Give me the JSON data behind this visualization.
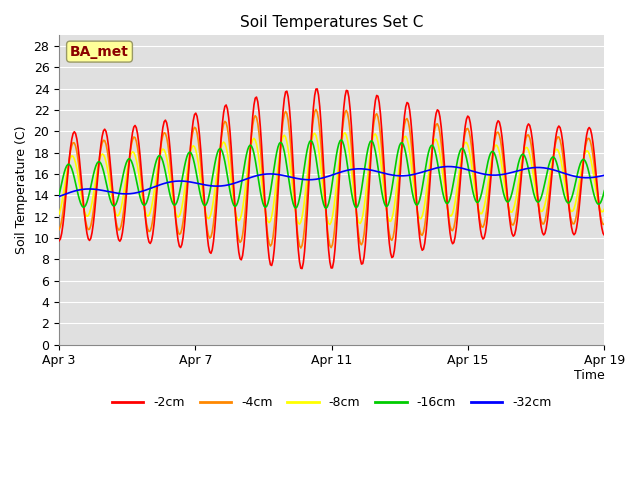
{
  "title": "Soil Temperatures Set C",
  "ylabel": "Soil Temperature (C)",
  "ylim": [
    0,
    29
  ],
  "yticks": [
    0,
    2,
    4,
    6,
    8,
    10,
    12,
    14,
    16,
    18,
    20,
    22,
    24,
    26,
    28
  ],
  "xtick_labels": [
    "Apr 3",
    "Apr 7",
    "Apr 11",
    "Apr 15",
    "Apr 19"
  ],
  "xtick_positions": [
    0,
    4,
    8,
    12,
    16
  ],
  "colors": {
    "-2cm": "#ff0000",
    "-4cm": "#ff8800",
    "-8cm": "#ffff00",
    "-16cm": "#00cc00",
    "-32cm": "#0000ff"
  },
  "annotation_text": "BA_met",
  "annotation_color": "#8b0000",
  "annotation_bg": "#ffff99",
  "plot_bg": "#e0e0e0",
  "grid_color": "#ffffff",
  "n_points": 432,
  "days": 18
}
